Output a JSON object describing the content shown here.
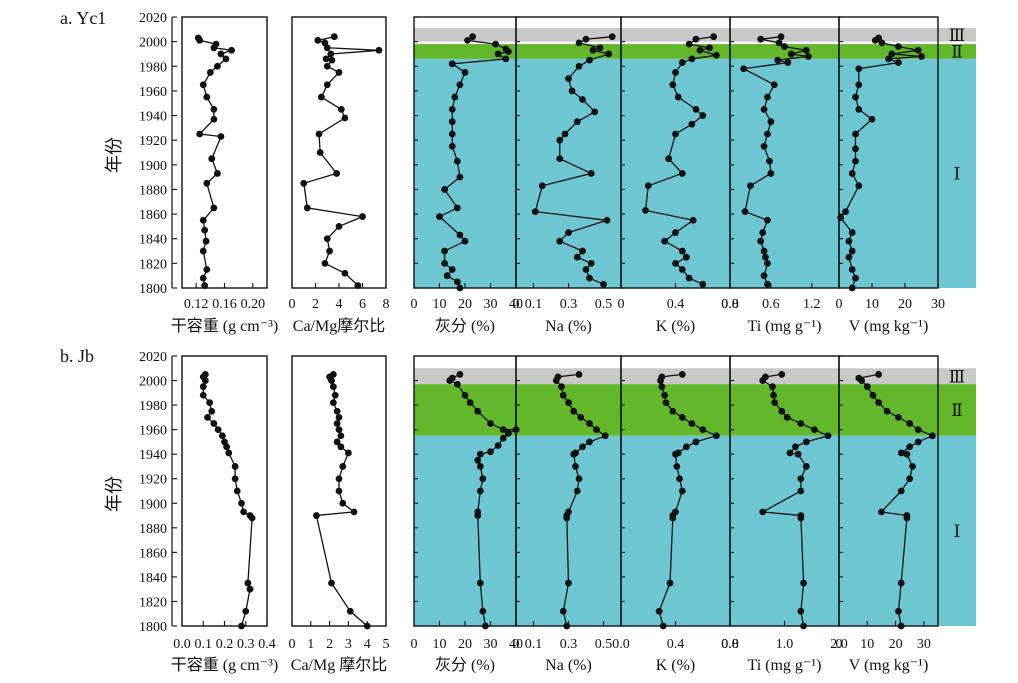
{
  "chart_data": [
    {
      "type": "line",
      "title": "a. Yc1",
      "ylabel": "年份",
      "ylim": [
        1800,
        2020
      ],
      "yticks": [
        1800,
        1820,
        1840,
        1860,
        1880,
        1900,
        1920,
        1940,
        1960,
        1980,
        2000,
        2020
      ],
      "zones": [
        {
          "label": "Ⅲ",
          "from": 2000,
          "to": 2011,
          "color": "#c8c8c8"
        },
        {
          "label": "Ⅱ",
          "from": 1986,
          "to": 1998,
          "color": "#62b72a"
        },
        {
          "label": "Ⅰ",
          "from": 1800,
          "to": 1986,
          "color": "#6ec6d2"
        }
      ],
      "series": [
        {
          "xlabel": "干容重 (g cm⁻³)",
          "xlim": [
            0.1,
            0.22
          ],
          "xticks": [
            "0.12",
            "0.16",
            "0.20"
          ],
          "xtick_values": [
            0.12,
            0.16,
            0.2
          ],
          "shaded": false,
          "x": [
            0.123,
            0.125,
            0.148,
            0.145,
            0.17,
            0.155,
            0.162,
            0.15,
            0.14,
            0.13,
            0.135,
            0.145,
            0.145,
            0.125,
            0.155,
            0.142,
            0.15,
            0.135,
            0.145,
            0.13,
            0.132,
            0.134,
            0.13,
            0.135,
            0.13,
            0.132
          ],
          "y": [
            2003,
            2001,
            1998,
            1995,
            1993,
            1990,
            1986,
            1980,
            1975,
            1965,
            1955,
            1945,
            1937,
            1925,
            1923,
            1905,
            1893,
            1885,
            1865,
            1855,
            1847,
            1838,
            1830,
            1815,
            1808,
            1802
          ]
        },
        {
          "xlabel": "Ca/Mg摩尔比",
          "xlim": [
            0,
            8
          ],
          "xticks": [
            "0",
            "2",
            "4",
            "6",
            "8"
          ],
          "xtick_values": [
            0,
            2,
            4,
            6,
            8
          ],
          "shaded": false,
          "x": [
            3.6,
            2.2,
            2.8,
            3.0,
            7.4,
            3.3,
            2.9,
            3.4,
            3.0,
            4.0,
            3.0,
            2.5,
            4.2,
            4.5,
            2.3,
            2.4,
            3.8,
            1.0,
            1.3,
            6.0,
            4.0,
            3.0,
            3.2,
            2.8,
            4.5,
            5.6
          ],
          "y": [
            2004,
            2001,
            1999,
            1995,
            1993,
            1990,
            1986,
            1985,
            1980,
            1975,
            1965,
            1955,
            1945,
            1938,
            1925,
            1910,
            1893,
            1885,
            1865,
            1858,
            1850,
            1840,
            1830,
            1820,
            1812,
            1802
          ]
        },
        {
          "xlabel": "灰分 (%)",
          "xlim": [
            0,
            40
          ],
          "xticks": [
            "0",
            "10",
            "20",
            "30",
            "40"
          ],
          "xtick_values": [
            0,
            10,
            20,
            30,
            40
          ],
          "shaded": true,
          "x": [
            23,
            21,
            32,
            36,
            37,
            33,
            36,
            15,
            20,
            18,
            16,
            15,
            15,
            15,
            15,
            17,
            18,
            12,
            17,
            10,
            18,
            20,
            12,
            12,
            15,
            13,
            17,
            18
          ],
          "y": [
            2004,
            2001,
            1998,
            1994,
            1992,
            1990,
            1986,
            1982,
            1975,
            1965,
            1955,
            1945,
            1935,
            1925,
            1915,
            1903,
            1890,
            1880,
            1865,
            1858,
            1843,
            1838,
            1830,
            1820,
            1815,
            1810,
            1805,
            1800
          ]
        },
        {
          "xlabel": "Na (%)",
          "xlim": [
            0,
            0.6
          ],
          "xticks": [
            "0",
            "0.1",
            "0.3",
            "0.5"
          ],
          "xtick_values": [
            0,
            0.1,
            0.3,
            0.5
          ],
          "shaded": true,
          "x": [
            0.55,
            0.4,
            0.36,
            0.48,
            0.44,
            0.53,
            0.42,
            0.36,
            0.3,
            0.32,
            0.38,
            0.45,
            0.35,
            0.28,
            0.25,
            0.25,
            0.43,
            0.15,
            0.11,
            0.52,
            0.3,
            0.25,
            0.38,
            0.35,
            0.43,
            0.4,
            0.42,
            0.5
          ],
          "y": [
            2004,
            2002,
            1999,
            1995,
            1993,
            1990,
            1985,
            1980,
            1970,
            1960,
            1953,
            1943,
            1935,
            1925,
            1920,
            1905,
            1893,
            1883,
            1862,
            1855,
            1845,
            1838,
            1830,
            1825,
            1820,
            1815,
            1808,
            1803
          ]
        },
        {
          "xlabel": "K (%)",
          "xlim": [
            0,
            0.8
          ],
          "xticks": [
            "0",
            "0.4",
            "0.8"
          ],
          "xtick_values": [
            0,
            0.4,
            0.8
          ],
          "shaded": true,
          "x": [
            0.68,
            0.55,
            0.5,
            0.65,
            0.58,
            0.7,
            0.52,
            0.45,
            0.4,
            0.38,
            0.42,
            0.55,
            0.6,
            0.52,
            0.4,
            0.35,
            0.45,
            0.2,
            0.18,
            0.53,
            0.4,
            0.32,
            0.45,
            0.48,
            0.4,
            0.45,
            0.5,
            0.6
          ],
          "y": [
            2004,
            2002,
            1998,
            1995,
            1993,
            1989,
            1986,
            1983,
            1975,
            1965,
            1955,
            1945,
            1940,
            1933,
            1925,
            1905,
            1893,
            1883,
            1863,
            1855,
            1845,
            1838,
            1830,
            1825,
            1820,
            1815,
            1808,
            1803
          ]
        },
        {
          "xlabel": "Ti (mg g⁻¹)",
          "xlim": [
            0,
            1.6
          ],
          "xticks": [
            "0.0",
            "0.6",
            "1.2"
          ],
          "xtick_values": [
            0,
            0.6,
            1.2
          ],
          "shaded": true,
          "x": [
            0.75,
            0.45,
            0.72,
            0.8,
            1.12,
            0.9,
            1.15,
            0.7,
            0.85,
            0.2,
            0.65,
            0.55,
            0.5,
            0.6,
            0.55,
            0.5,
            0.58,
            0.6,
            0.3,
            0.22,
            0.55,
            0.48,
            0.45,
            0.5,
            0.52,
            0.55,
            0.5,
            0.55
          ],
          "y": [
            2004,
            2002,
            1999,
            1996,
            1993,
            1990,
            1988,
            1985,
            1983,
            1978,
            1965,
            1955,
            1945,
            1935,
            1925,
            1915,
            1903,
            1893,
            1883,
            1862,
            1855,
            1845,
            1838,
            1830,
            1825,
            1820,
            1810,
            1803
          ]
        },
        {
          "xlabel": "V (mg kg⁻¹)",
          "xlim": [
            0,
            30
          ],
          "xticks": [
            "0",
            "10",
            "20",
            "30"
          ],
          "xtick_values": [
            0,
            10,
            20,
            30
          ],
          "shaded": true,
          "x": [
            12,
            11,
            13,
            18,
            24,
            16,
            25,
            15,
            18,
            6,
            6,
            5,
            6,
            10,
            5,
            5,
            5,
            4,
            6,
            2,
            0.5,
            4,
            3,
            4,
            3,
            4,
            5,
            4
          ],
          "y": [
            2003,
            2001,
            1999,
            1996,
            1993,
            1990,
            1988,
            1986,
            1983,
            1978,
            1965,
            1955,
            1945,
            1937,
            1925,
            1913,
            1903,
            1893,
            1883,
            1862,
            1857,
            1845,
            1838,
            1830,
            1825,
            1815,
            1808,
            1800
          ]
        }
      ]
    },
    {
      "type": "line",
      "title": "b. Jb",
      "ylabel": "年份",
      "ylim": [
        1800,
        2020
      ],
      "yticks": [
        1800,
        1820,
        1840,
        1860,
        1880,
        1900,
        1920,
        1940,
        1960,
        1980,
        2000,
        2020
      ],
      "zones": [
        {
          "label": "Ⅲ",
          "from": 1997,
          "to": 2010,
          "color": "#c8c8c8"
        },
        {
          "label": "Ⅱ",
          "from": 1955,
          "to": 1997,
          "color": "#62b72a"
        },
        {
          "label": "Ⅰ",
          "from": 1800,
          "to": 1955,
          "color": "#6ec6d2"
        }
      ],
      "series": [
        {
          "xlabel": "干容重 (g cm⁻³)",
          "xlim": [
            0,
            0.4
          ],
          "xticks": [
            "0.0",
            "0.1",
            "0.2",
            "0.3",
            "0.4"
          ],
          "xtick_values": [
            0,
            0.1,
            0.2,
            0.3,
            0.4
          ],
          "shaded": false,
          "x": [
            0.11,
            0.1,
            0.11,
            0.1,
            0.1,
            0.13,
            0.14,
            0.12,
            0.15,
            0.17,
            0.19,
            0.2,
            0.21,
            0.22,
            0.25,
            0.25,
            0.26,
            0.28,
            0.29,
            0.32,
            0.33,
            0.31,
            0.32,
            0.3,
            0.28
          ],
          "y": [
            2005,
            2003,
            2000,
            1995,
            1988,
            1982,
            1975,
            1970,
            1965,
            1960,
            1955,
            1950,
            1946,
            1941,
            1930,
            1920,
            1910,
            1900,
            1893,
            1890,
            1888,
            1835,
            1830,
            1812,
            1800
          ]
        },
        {
          "xlabel": "Ca/Mg 摩尔比",
          "xlim": [
            0,
            5
          ],
          "xticks": [
            "0",
            "1",
            "2",
            "3",
            "4",
            "5"
          ],
          "xtick_values": [
            0,
            1,
            2,
            3,
            4,
            5
          ],
          "shaded": false,
          "x": [
            2.2,
            2.0,
            2.1,
            2.2,
            2.3,
            2.2,
            2.4,
            2.5,
            2.4,
            2.5,
            2.6,
            2.4,
            2.6,
            3.0,
            2.7,
            2.5,
            2.5,
            2.7,
            3.3,
            1.3,
            2.1,
            3.1,
            4.0
          ],
          "y": [
            2005,
            2003,
            2000,
            1995,
            1988,
            1982,
            1975,
            1970,
            1965,
            1960,
            1955,
            1950,
            1946,
            1941,
            1930,
            1920,
            1910,
            1900,
            1893,
            1890,
            1835,
            1812,
            1800
          ]
        },
        {
          "xlabel": "灰分 (%)",
          "xlim": [
            0,
            40
          ],
          "xticks": [
            "0",
            "10",
            "20",
            "30",
            "40"
          ],
          "xtick_values": [
            0,
            10,
            20,
            30,
            40
          ],
          "shaded": true,
          "x": [
            18,
            15,
            14,
            17,
            20,
            22,
            25,
            30,
            35,
            40,
            37,
            35,
            33,
            30,
            26,
            25,
            26,
            27,
            26,
            25,
            25,
            26,
            27,
            28
          ],
          "y": [
            2005,
            2002,
            2000,
            1997,
            1988,
            1982,
            1975,
            1965,
            1960,
            1960,
            1957,
            1953,
            1947,
            1942,
            1940,
            1935,
            1930,
            1920,
            1910,
            1893,
            1890,
            1835,
            1812,
            1800
          ]
        },
        {
          "xlabel": "Na (%)",
          "xlim": [
            0,
            0.6
          ],
          "xticks": [
            "0",
            "0.1",
            "0.3",
            "0.5"
          ],
          "xtick_values": [
            0,
            0.1,
            0.3,
            0.5
          ],
          "shaded": true,
          "x": [
            0.36,
            0.24,
            0.23,
            0.26,
            0.27,
            0.3,
            0.33,
            0.37,
            0.42,
            0.46,
            0.51,
            0.42,
            0.38,
            0.34,
            0.33,
            0.34,
            0.36,
            0.35,
            0.3,
            0.29,
            0.29,
            0.3,
            0.27,
            0.29
          ],
          "y": [
            2005,
            2003,
            2000,
            1995,
            1988,
            1982,
            1975,
            1970,
            1965,
            1960,
            1955,
            1950,
            1946,
            1941,
            1940,
            1930,
            1920,
            1910,
            1893,
            1890,
            1888,
            1835,
            1812,
            1800
          ]
        },
        {
          "xlabel": "K (%)",
          "xlim": [
            0,
            0.8
          ],
          "xticks": [
            "0.0",
            "0.4",
            "0.8"
          ],
          "xtick_values": [
            0,
            0.4,
            0.8
          ],
          "shaded": true,
          "x": [
            0.45,
            0.3,
            0.29,
            0.3,
            0.32,
            0.33,
            0.38,
            0.45,
            0.52,
            0.6,
            0.7,
            0.55,
            0.48,
            0.42,
            0.4,
            0.41,
            0.43,
            0.45,
            0.4,
            0.38,
            0.38,
            0.36,
            0.28,
            0.31
          ],
          "y": [
            2005,
            2003,
            2000,
            1995,
            1988,
            1982,
            1975,
            1970,
            1965,
            1960,
            1955,
            1950,
            1946,
            1941,
            1940,
            1930,
            1920,
            1910,
            1893,
            1890,
            1888,
            1835,
            1812,
            1800
          ]
        },
        {
          "xlabel": "Ti (mg g⁻¹)",
          "xlim": [
            0,
            2.0
          ],
          "xticks": [
            "0.0",
            "1.0",
            "2.0"
          ],
          "xtick_values": [
            0,
            1,
            2
          ],
          "shaded": true,
          "x": [
            0.95,
            0.65,
            0.6,
            0.78,
            0.8,
            0.82,
            0.95,
            1.05,
            1.3,
            1.55,
            1.8,
            1.4,
            1.2,
            1.1,
            1.25,
            1.4,
            1.3,
            1.3,
            0.6,
            1.3,
            1.3,
            1.35,
            1.3,
            1.35
          ],
          "y": [
            2005,
            2003,
            2000,
            1995,
            1988,
            1982,
            1975,
            1970,
            1965,
            1960,
            1955,
            1950,
            1946,
            1941,
            1940,
            1930,
            1920,
            1910,
            1893,
            1890,
            1888,
            1835,
            1812,
            1800
          ]
        },
        {
          "xlabel": "V (mg kg⁻¹)",
          "xlim": [
            0,
            35
          ],
          "xticks": [
            "0",
            "10",
            "20",
            "30"
          ],
          "xtick_values": [
            0,
            10,
            20,
            30
          ],
          "shaded": true,
          "x": [
            14,
            7,
            8,
            10,
            12,
            14,
            17,
            21,
            25,
            28,
            33,
            28,
            25,
            22,
            24,
            26,
            25,
            22,
            15,
            24,
            24,
            22,
            21,
            22
          ],
          "y": [
            2005,
            2002,
            2000,
            1995,
            1988,
            1982,
            1975,
            1970,
            1965,
            1960,
            1955,
            1950,
            1946,
            1941,
            1940,
            1930,
            1920,
            1910,
            1893,
            1890,
            1888,
            1835,
            1812,
            1800
          ]
        }
      ]
    }
  ]
}
